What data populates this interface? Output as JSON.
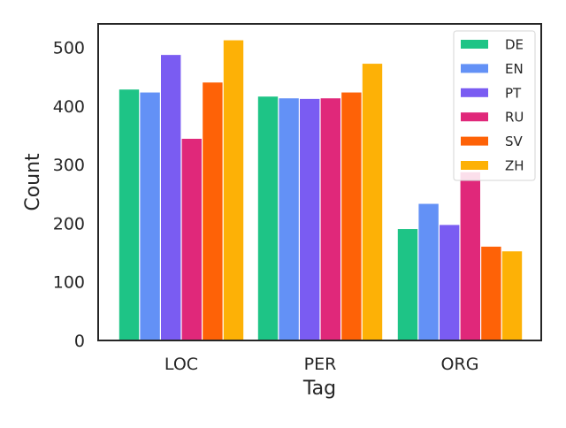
{
  "chart_data": {
    "type": "bar",
    "title": "",
    "xlabel": "Tag",
    "ylabel": "Count",
    "categories": [
      "LOC",
      "PER",
      "ORG"
    ],
    "ylim": [
      0,
      540
    ],
    "yticks": [
      0,
      100,
      200,
      300,
      400,
      500
    ],
    "grid": false,
    "legend_position": "top-right",
    "series": [
      {
        "name": "DE",
        "color": "#1ec486",
        "values": [
          428,
          416,
          190
        ]
      },
      {
        "name": "EN",
        "color": "#6391f6",
        "values": [
          423,
          413,
          233
        ]
      },
      {
        "name": "PT",
        "color": "#7a5cf2",
        "values": [
          487,
          412,
          197
        ]
      },
      {
        "name": "RU",
        "color": "#e0287a",
        "values": [
          344,
          413,
          287
        ]
      },
      {
        "name": "SV",
        "color": "#fe6207",
        "values": [
          440,
          423,
          160
        ]
      },
      {
        "name": "ZH",
        "color": "#fdb106",
        "values": [
          512,
          472,
          152
        ]
      }
    ]
  }
}
